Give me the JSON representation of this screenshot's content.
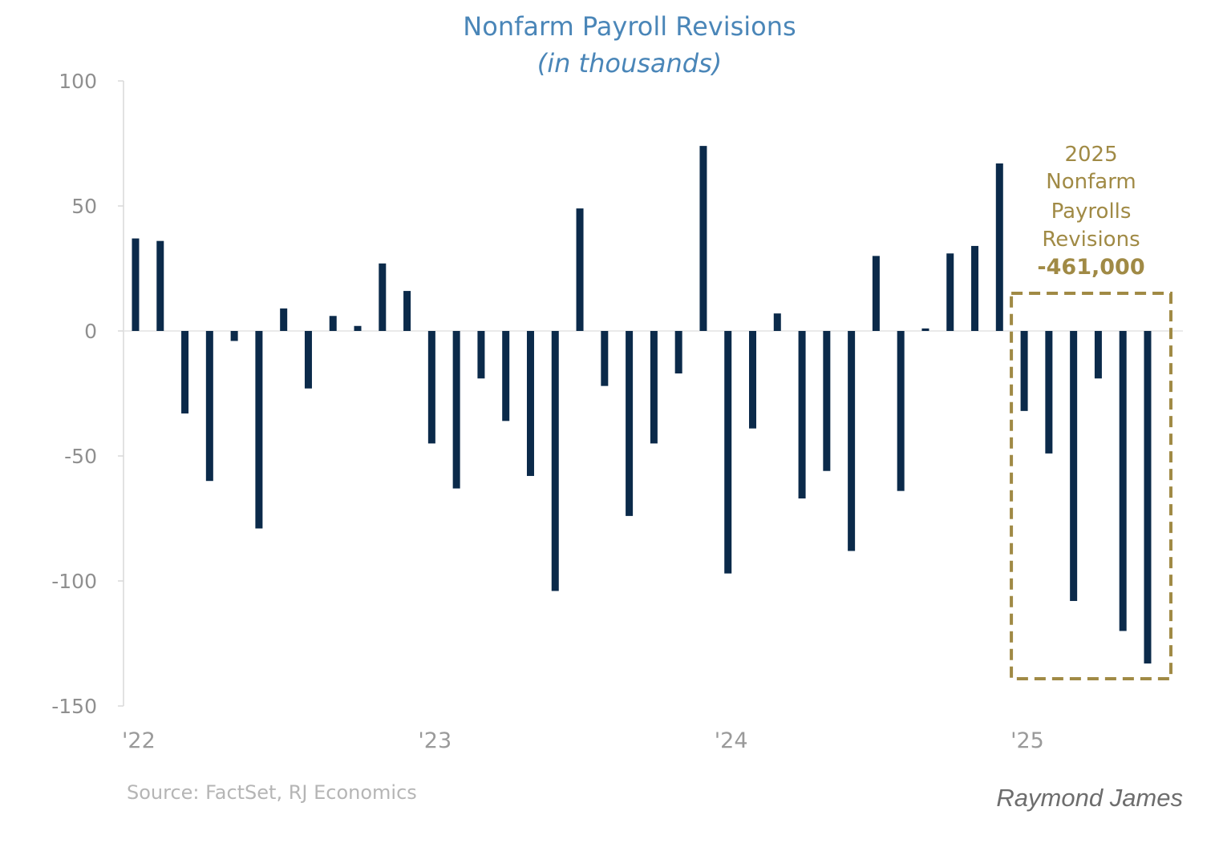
{
  "chart_data": {
    "type": "bar",
    "title": "Nonfarm Payroll Revisions",
    "subtitle": "(in thousands)",
    "xlabel": "",
    "ylabel": "",
    "ylim": [
      -150,
      100
    ],
    "yticks": [
      100,
      50,
      0,
      -50,
      -100,
      -150
    ],
    "ytick_labels": [
      "100",
      "50",
      "0",
      "-50",
      "-100",
      "-150"
    ],
    "xtick_labels": [
      {
        "label": "'22",
        "at_index": 0
      },
      {
        "label": "'23",
        "at_index": 12
      },
      {
        "label": "'24",
        "at_index": 24
      },
      {
        "label": "'25",
        "at_index": 36
      }
    ],
    "grid": false,
    "legend": "none",
    "bar_color": "#0b2a4a",
    "series": [
      {
        "values": [
          37,
          36,
          -33,
          -60,
          -4,
          -79,
          9,
          -23,
          6,
          2,
          27,
          16,
          -45,
          -63,
          -19,
          -36,
          -58,
          -104,
          49,
          -22,
          -74,
          -45,
          -17,
          74,
          -97,
          -39,
          7,
          -67,
          -56,
          -88,
          30,
          -64,
          1,
          31,
          34,
          67,
          -32,
          -49,
          -108,
          -19,
          -120,
          -133
        ]
      }
    ],
    "annotation": {
      "lines": [
        "2025",
        "Nonfarm",
        "Payrolls",
        "Revisions"
      ],
      "value_text": "-461,000",
      "color": "#a08a45",
      "box_from_index": 36,
      "box_to_index": 41
    }
  },
  "footer": {
    "source": "Source: FactSet, RJ Economics",
    "brand": "Raymond James"
  }
}
